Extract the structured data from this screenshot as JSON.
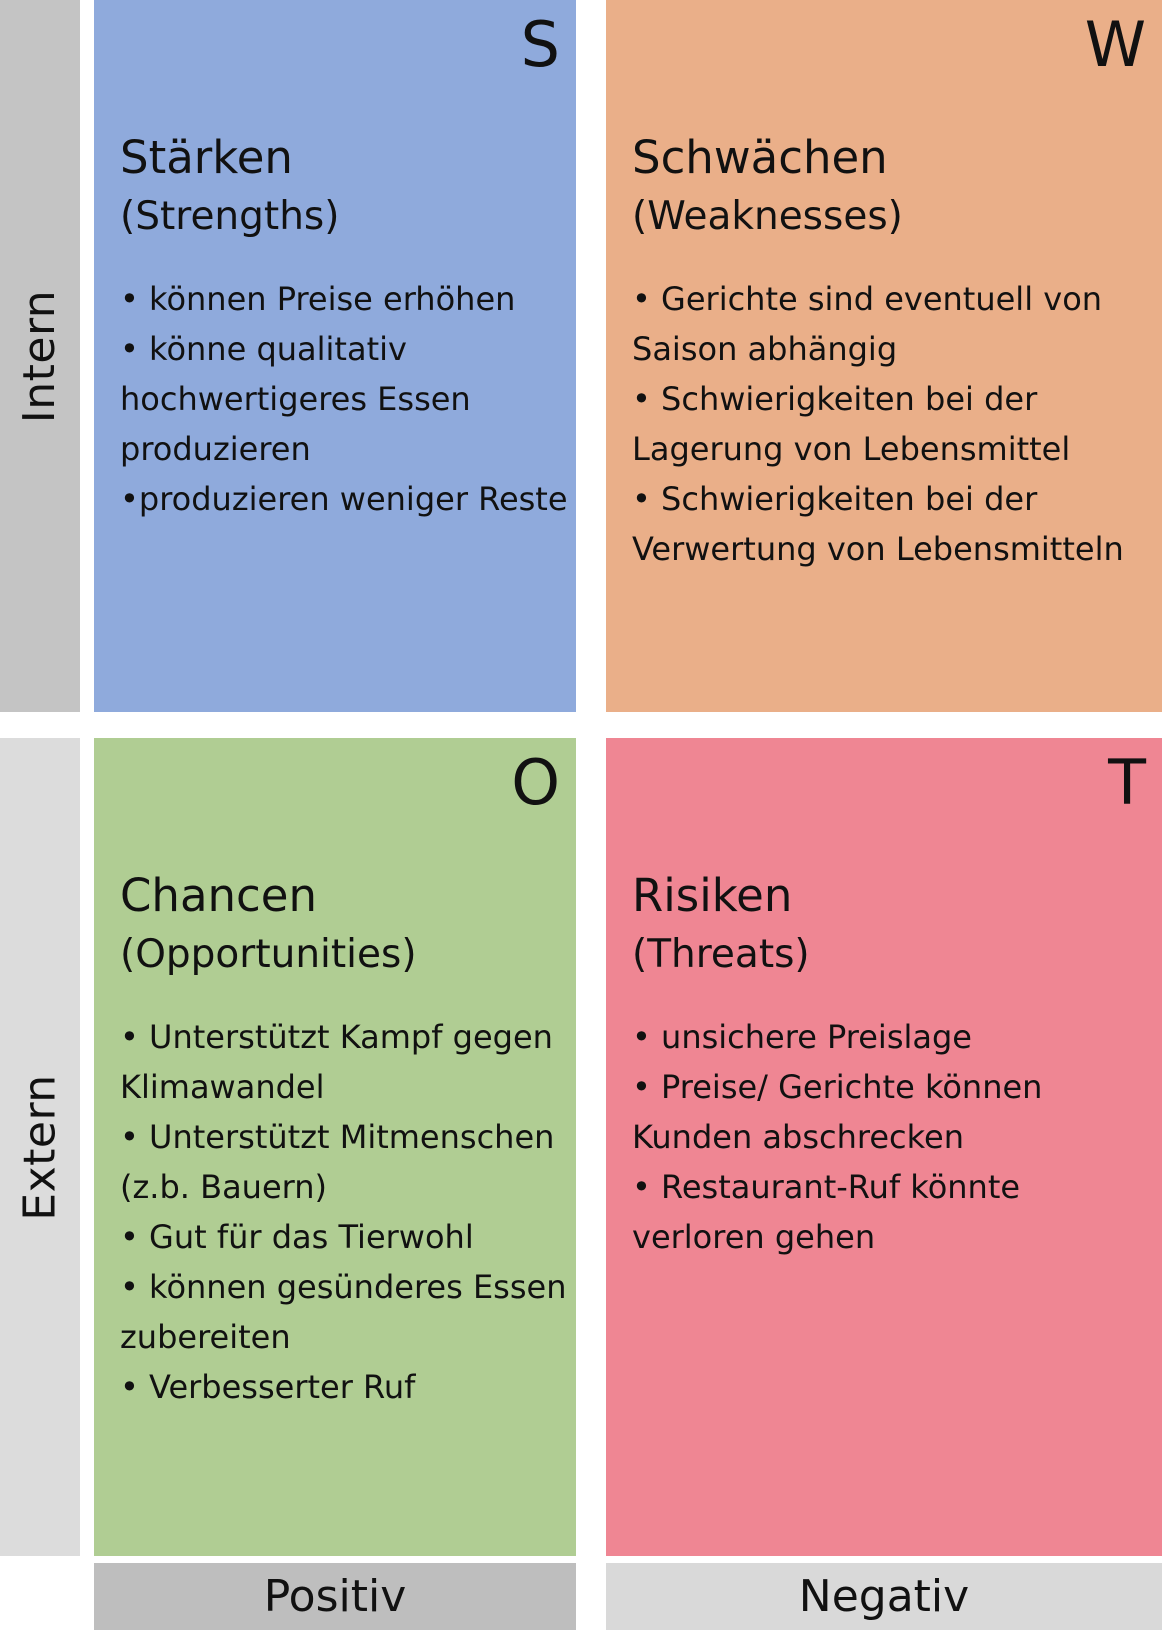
{
  "rows": {
    "intern_label": "Intern",
    "extern_label": "Extern"
  },
  "columns": {
    "positiv_label": "Positiv",
    "negativ_label": "Negativ"
  },
  "colors": {
    "strengths": "#8faadc",
    "weaknesses": "#eaaf89",
    "opportunities": "#b0cd93",
    "threats": "#ef8693"
  },
  "quadrants": {
    "s": {
      "letter": "S",
      "title": "Stärken",
      "subtitle": "(Strengths)",
      "items": [
        "• können Preise erhöhen",
        "• könne qualitativ hochwertigeres Essen produzieren",
        "•produzieren weniger Reste"
      ]
    },
    "w": {
      "letter": "W",
      "title": "Schwächen",
      "subtitle": "(Weaknesses)",
      "items": [
        "• Gerichte sind eventuell von Saison abhängig",
        "• Schwierigkeiten bei der Lagerung von Lebensmittel",
        "• Schwierigkeiten bei der Verwertung von Lebensmitteln"
      ]
    },
    "o": {
      "letter": "O",
      "title": "Chancen",
      "subtitle": "(Opportunities)",
      "items": [
        "• Unterstützt Kampf gegen Klimawandel",
        "• Unterstützt Mitmenschen (z.b. Bauern)",
        "• Gut für das Tierwohl",
        "• können gesünderes Essen zubereiten",
        "• Verbesserter Ruf"
      ]
    },
    "t": {
      "letter": "T",
      "title": "Risiken",
      "subtitle": "(Threats)",
      "items": [
        "• unsichere Preislage",
        "• Preise/ Gerichte können Kunden abschrecken",
        "• Restaurant-Ruf könnte verloren gehen"
      ]
    }
  }
}
